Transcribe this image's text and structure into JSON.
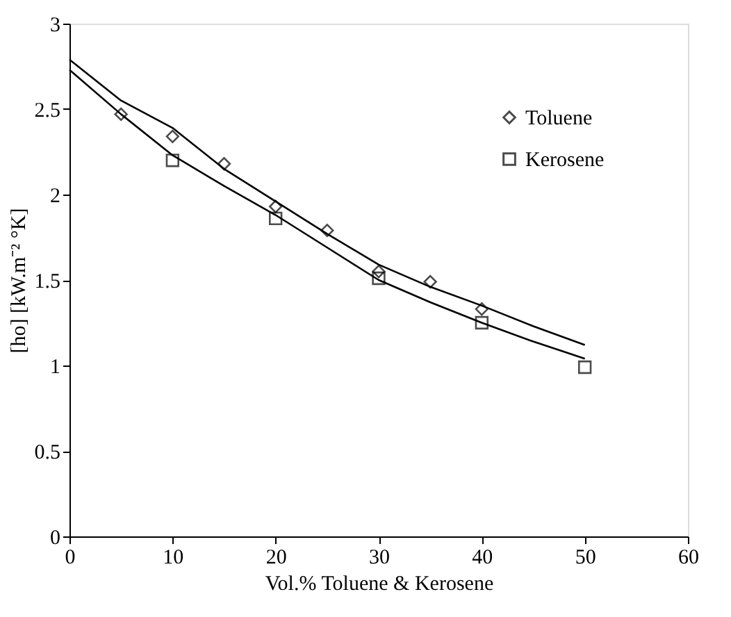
{
  "chart_data": {
    "type": "scatter",
    "xlabel": "Vol.% Toluene & Kerosene",
    "ylabel": "[ho] [kW.m⁻² °K]",
    "xlim": [
      0,
      60
    ],
    "xticks": [
      0,
      10,
      20,
      30,
      40,
      50,
      60
    ],
    "ylim": [
      0,
      3
    ],
    "yticks": [
      0,
      0.5,
      1,
      1.5,
      2,
      2.5,
      3
    ],
    "grid": false,
    "legend": "top right",
    "series": [
      {
        "name": "Toluene",
        "marker": "diamond",
        "color": "#000000",
        "x": [
          5,
          10,
          15,
          20,
          25,
          30,
          35,
          40
        ],
        "values": [
          2.47,
          2.34,
          2.18,
          1.93,
          1.79,
          1.55,
          1.49,
          1.33
        ]
      },
      {
        "name": "Kerosene",
        "marker": "square",
        "color": "#000000",
        "x": [
          10,
          20,
          30,
          40,
          50
        ],
        "values": [
          2.2,
          1.86,
          1.51,
          1.25,
          0.99
        ]
      },
      {
        "type": "line",
        "line_style": "solid",
        "color": "#000000",
        "x": [
          0,
          5,
          10,
          15,
          20,
          25,
          30,
          35,
          40,
          45,
          50
        ],
        "values": [
          2.79,
          2.55,
          2.39,
          2.15,
          1.96,
          1.77,
          1.59,
          1.46,
          1.35,
          1.23,
          1.12
        ]
      },
      {
        "type": "line",
        "line_style": "solid",
        "color": "#000000",
        "x": [
          0,
          5,
          10,
          15,
          20,
          25,
          30,
          35,
          40,
          45,
          50
        ],
        "values": [
          2.73,
          2.47,
          2.23,
          2.05,
          1.88,
          1.69,
          1.5,
          1.37,
          1.25,
          1.14,
          1.04
        ]
      }
    ]
  }
}
